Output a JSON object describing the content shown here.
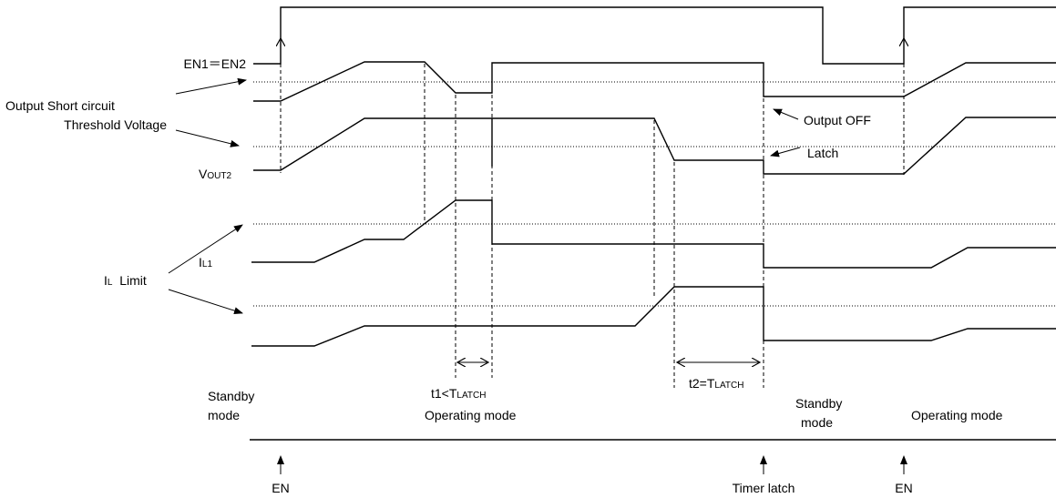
{
  "signals": {
    "en": "EN1＝EN2",
    "short_circuit_line1": "Output Short circuit",
    "short_circuit_line2": "Threshold Voltage",
    "vout_main": "V",
    "vout_sub": "OUT2",
    "il_limit_main": "I",
    "il_limit_sub": "L",
    "il_limit_rest": "  Limit",
    "il1_main": "I",
    "il1_sub": "L1"
  },
  "annotations": {
    "output_off": "Output OFF",
    "latch": "Latch",
    "t1_prefix": "t1<T",
    "t1_sub": "LATCH",
    "t2_prefix": "t2=T",
    "t2_sub": "LATCH"
  },
  "modes": {
    "standby1_line1": "Standby",
    "standby1_line2": "mode",
    "operating1": "Operating mode",
    "standby2_line1": "Standby",
    "standby2_line2": "mode",
    "operating2": "Operating mode"
  },
  "events": {
    "en1": "EN",
    "timer_latch": "Timer latch",
    "en2": "EN"
  }
}
